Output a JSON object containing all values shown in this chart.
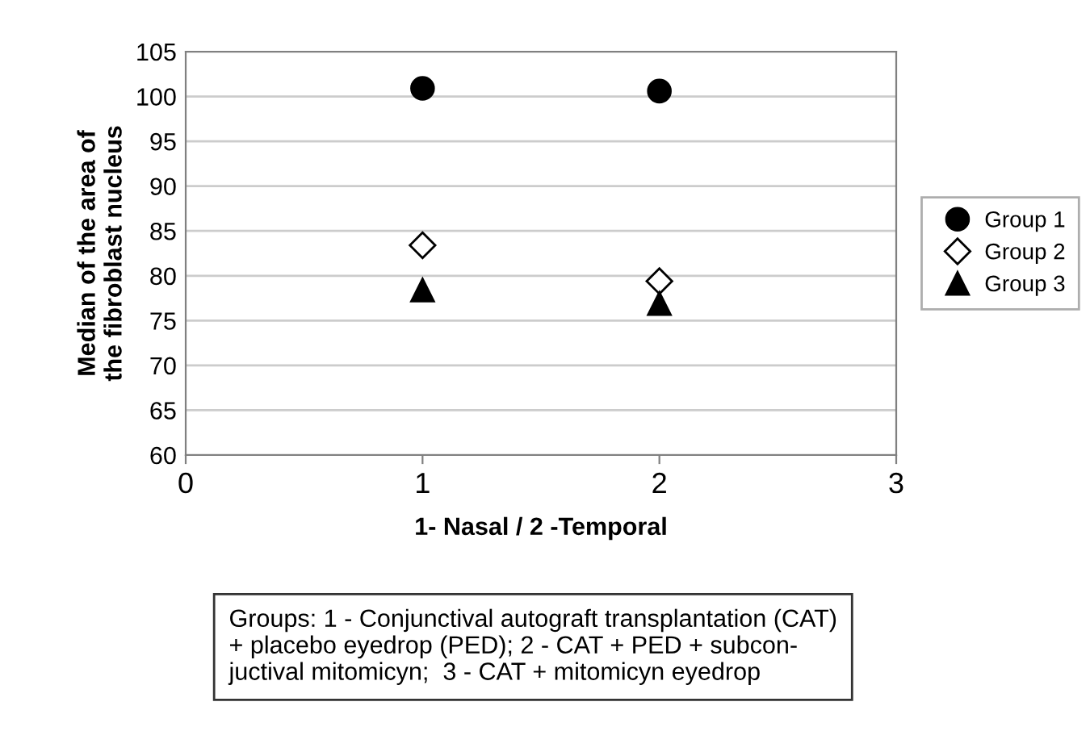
{
  "chart_data": {
    "type": "scatter",
    "xlabel": "1- Nasal / 2 -Temporal",
    "ylabel": "Median of the area of\nthe fibroblast nucleus",
    "x": [
      1,
      2
    ],
    "series": [
      {
        "name": "Group 1",
        "color": "#000000",
        "marker": "circle",
        "values": [
          100.9,
          100.6
        ]
      },
      {
        "name": "Group 2",
        "color": "#ffffff",
        "marker": "diamond",
        "values": [
          83.4,
          79.4
        ]
      },
      {
        "name": "Group 3",
        "color": "#000000",
        "marker": "triangle",
        "values": [
          78.4,
          76.9
        ]
      }
    ],
    "xlim": [
      0,
      3
    ],
    "xticks": [
      0,
      1,
      2,
      3
    ],
    "ylim": [
      60,
      105
    ],
    "yticks": [
      60,
      65,
      70,
      75,
      80,
      85,
      90,
      95,
      100,
      105
    ],
    "grid": "y",
    "legend": "right",
    "annotations": [
      "Groups: 1 - Conjunctival autograft transplantation (CAT)\n+ placebo eyedrop (PED); 2 - CAT + PED + subcon-\njuctival mitomicyn;  3 - CAT + mitomicyn eyedrop"
    ]
  }
}
